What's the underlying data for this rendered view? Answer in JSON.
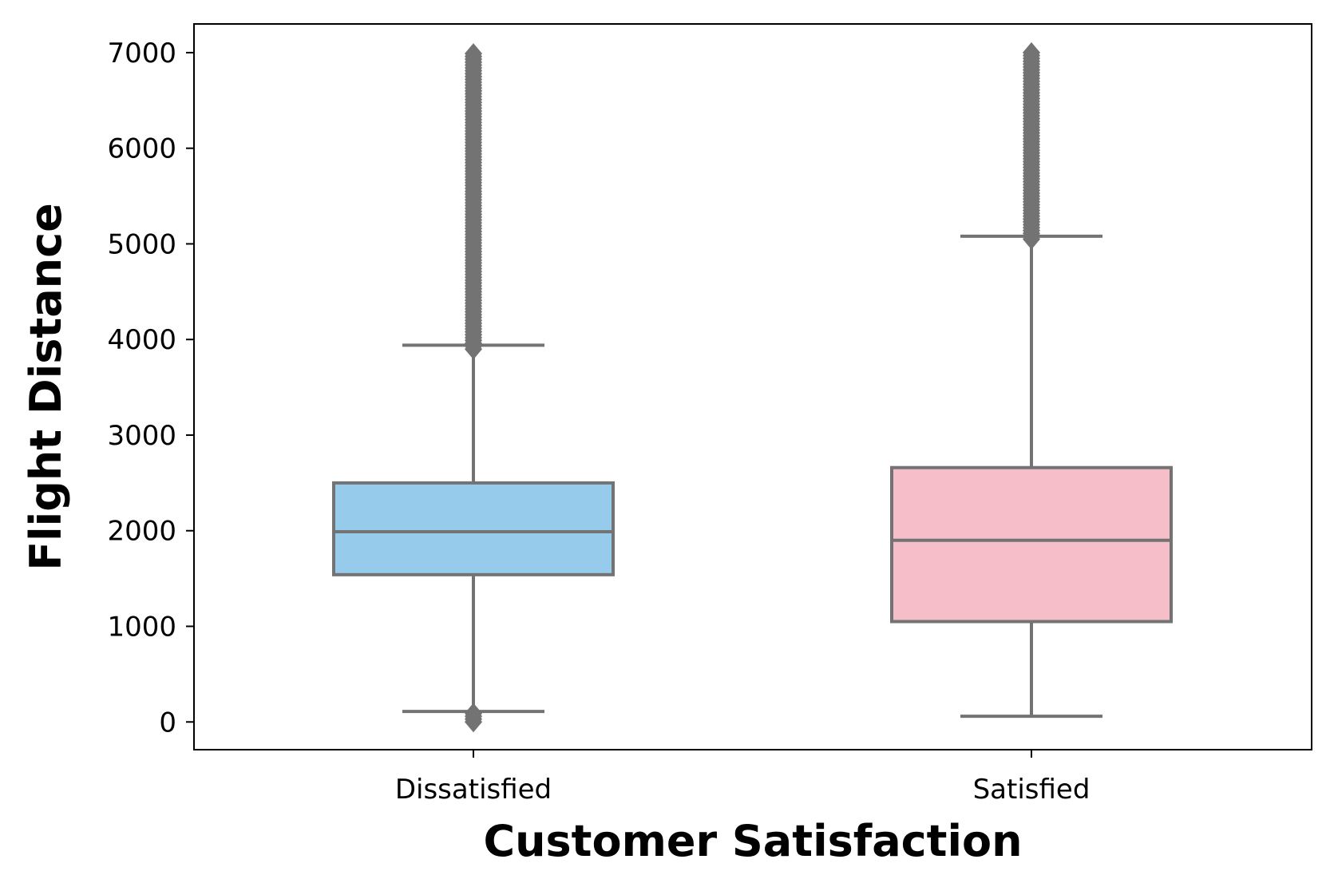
{
  "chart_data": {
    "type": "boxplot",
    "xlabel": "Customer Satisfaction",
    "ylabel": "Flight Distance",
    "ylim": [
      -290,
      7300
    ],
    "yticks": [
      0,
      1000,
      2000,
      3000,
      4000,
      5000,
      6000,
      7000
    ],
    "categories": [
      "Dissatisfied",
      "Satisfied"
    ],
    "boxes": [
      {
        "category": "Dissatisfied",
        "whisker_low": 110,
        "q1": 1540,
        "median": 1990,
        "q3": 2500,
        "whisker_high": 3940,
        "outliers_low": [
          0,
          30,
          60,
          90
        ],
        "outliers_high_range": [
          3900,
          7000
        ],
        "color": "#96cbec"
      },
      {
        "category": "Satisfied",
        "whisker_low": 60,
        "q1": 1050,
        "median": 1900,
        "q3": 2660,
        "whisker_high": 5080,
        "outliers_low": [],
        "outliers_high_range": [
          5050,
          7000
        ],
        "color": "#f5bec8"
      }
    ],
    "grid": false,
    "legend": "none",
    "edge_color": "#737373"
  }
}
